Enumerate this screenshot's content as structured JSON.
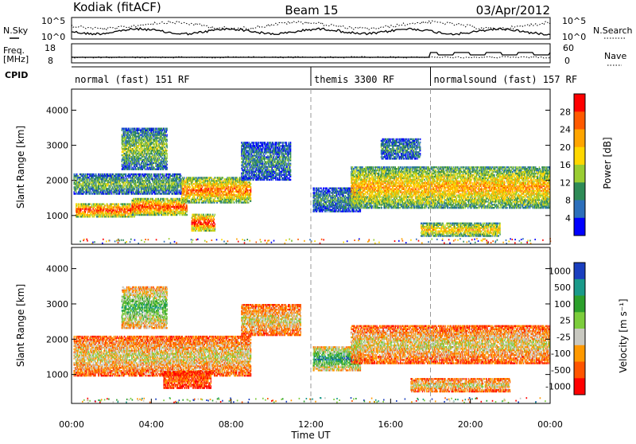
{
  "header": {
    "station": "Kodiak (fitACF)",
    "beam": "Beam 15",
    "date": "03/Apr/2012"
  },
  "aux": {
    "nsky_label": "N.Sky",
    "nsearch_label": "N.Search",
    "noise_left_ticks": [
      "10^5",
      "10^0"
    ],
    "noise_right_ticks": [
      "10^5",
      "10^0"
    ],
    "freq_label_line1": "Freq.",
    "freq_label_line2": "[MHz]",
    "freq_left_ticks": [
      "18",
      "8"
    ],
    "nave_label": "Nave",
    "nave_right_ticks": [
      "60",
      "0"
    ],
    "cpid_label": "CPID",
    "cpid_segments": [
      {
        "start_hour": 0,
        "end_hour": 12,
        "label": "normal (fast) 151 RF"
      },
      {
        "start_hour": 12,
        "end_hour": 18,
        "label": "themis 3300 RF"
      },
      {
        "start_hour": 18,
        "end_hour": 24,
        "label": "normalsound (fast) 157 RF"
      }
    ]
  },
  "chart_data": [
    {
      "type": "heatmap",
      "parameter": "power",
      "ylabel": "Slant Range [km]",
      "xlabel": "",
      "xlim_hours": [
        0,
        24
      ],
      "ylim": [
        180,
        4600
      ],
      "yticks": [
        "1000",
        "2000",
        "3000",
        "4000"
      ],
      "colorbar": {
        "title": "Power [dB]",
        "ticks": [
          "28",
          "24",
          "20",
          "16",
          "12",
          "8",
          "4"
        ],
        "colors": [
          "#ff0000",
          "#ff5a00",
          "#ffa500",
          "#ffd700",
          "#9acd32",
          "#2e8b57",
          "#2c6fbb",
          "#0000ff"
        ]
      },
      "regions": [
        {
          "t0": 0.2,
          "t1": 3.2,
          "r0": 950,
          "r1": 1350,
          "level": 0.9
        },
        {
          "t0": 3.0,
          "t1": 5.8,
          "r0": 1000,
          "r1": 1500,
          "level": 0.88
        },
        {
          "t0": 5.5,
          "t1": 9.0,
          "r0": 1350,
          "r1": 2100,
          "level": 0.8
        },
        {
          "t0": 0.1,
          "t1": 5.5,
          "r0": 1600,
          "r1": 2200,
          "level": 0.4
        },
        {
          "t0": 2.5,
          "t1": 4.8,
          "r0": 2300,
          "r1": 3500,
          "level": 0.45
        },
        {
          "t0": 6.0,
          "t1": 7.2,
          "r0": 550,
          "r1": 1050,
          "level": 0.95
        },
        {
          "t0": 8.5,
          "t1": 11.0,
          "r0": 2000,
          "r1": 3100,
          "level": 0.3
        },
        {
          "t0": 12.1,
          "t1": 14.5,
          "r0": 1100,
          "r1": 1800,
          "level": 0.3
        },
        {
          "t0": 14.0,
          "t1": 24.0,
          "r0": 1200,
          "r1": 2400,
          "level": 0.7
        },
        {
          "t0": 17.5,
          "t1": 21.5,
          "r0": 400,
          "r1": 800,
          "level": 0.65
        },
        {
          "t0": 15.5,
          "t1": 17.5,
          "r0": 2600,
          "r1": 3200,
          "level": 0.3
        }
      ]
    },
    {
      "type": "heatmap",
      "parameter": "velocity",
      "ylabel": "Slant Range [km]",
      "xlabel": "Time UT",
      "xlim_hours": [
        0,
        24
      ],
      "ylim": [
        180,
        4600
      ],
      "yticks": [
        "1000",
        "2000",
        "3000",
        "4000"
      ],
      "xticks": [
        "00:00",
        "04:00",
        "08:00",
        "12:00",
        "16:00",
        "20:00",
        "00:00"
      ],
      "colorbar": {
        "title": "Velocity [m s⁻¹]",
        "ticks": [
          "1000",
          "500",
          "100",
          "25",
          "-25",
          "-100",
          "-500",
          "-1000"
        ],
        "colors": [
          "#1a3fbf",
          "#1a9a8a",
          "#2ca02c",
          "#7ccd3c",
          "#c8c8c0",
          "#ff9900",
          "#ff5500",
          "#ff0000"
        ]
      },
      "regions": [
        {
          "t0": 0.1,
          "t1": 9.0,
          "r0": 950,
          "r1": 2100,
          "level": 0.45
        },
        {
          "t0": 2.5,
          "t1": 4.8,
          "r0": 2300,
          "r1": 3500,
          "level": 0.7
        },
        {
          "t0": 4.6,
          "t1": 7.0,
          "r0": 600,
          "r1": 1100,
          "level": 0.2
        },
        {
          "t0": 8.5,
          "t1": 11.5,
          "r0": 2100,
          "r1": 3000,
          "level": 0.45
        },
        {
          "t0": 12.1,
          "t1": 14.5,
          "r0": 1100,
          "r1": 1800,
          "level": 0.8
        },
        {
          "t0": 14.0,
          "t1": 24.0,
          "r0": 1300,
          "r1": 2400,
          "level": 0.45
        },
        {
          "t0": 17.0,
          "t1": 22.0,
          "r0": 500,
          "r1": 900,
          "level": 0.45
        }
      ]
    }
  ]
}
